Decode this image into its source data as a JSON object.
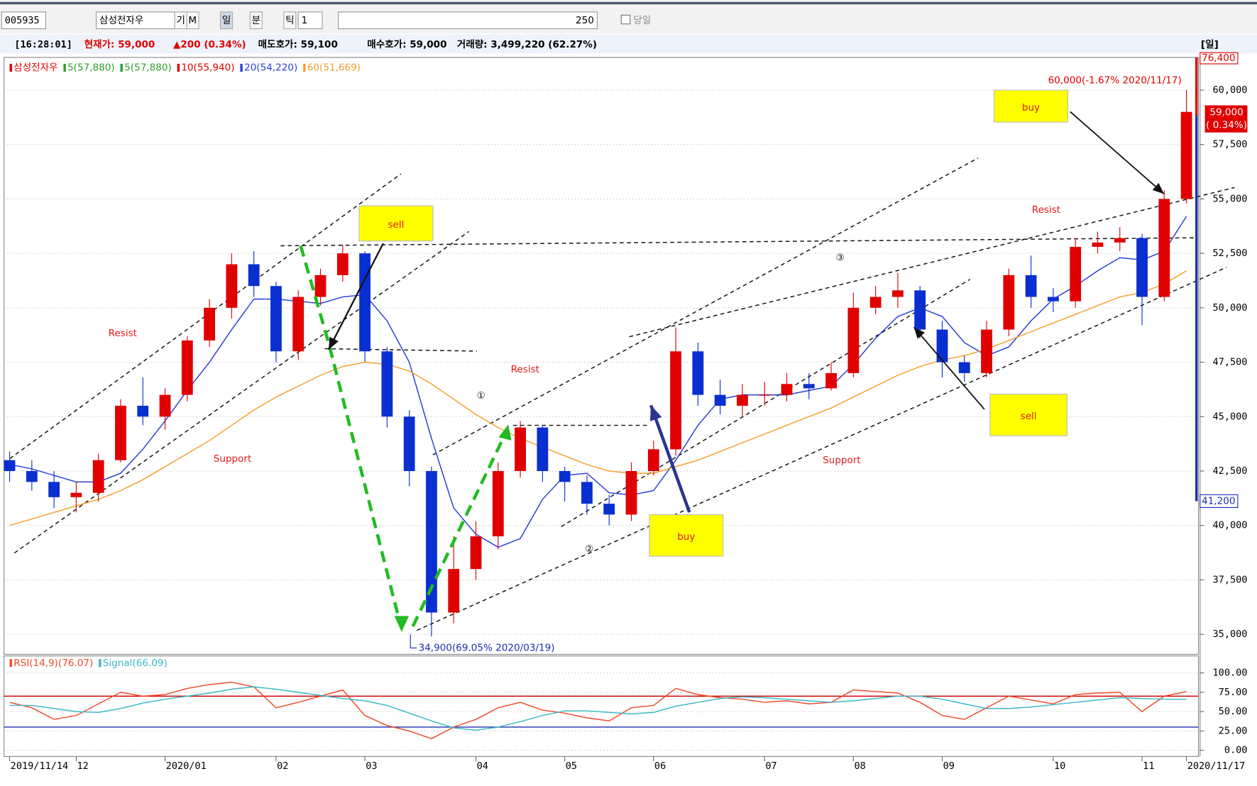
{
  "toolbar": {
    "code": "005935",
    "name": "삼성전자우",
    "buttons": [
      "기",
      "M",
      "일",
      "분",
      "틱"
    ],
    "period": "1",
    "count": "250",
    "today": "당일"
  },
  "info_bar": {
    "time": "[16:28:01]",
    "price": "현재가: 59,000",
    "change": "▲200 (0.34%)",
    "ask": "매도호가: 59,100",
    "bid": "매수호가: 59,000",
    "volume": "거래량: 3,499,220 (62.27%)",
    "corner": "[일]"
  },
  "chart_data": [
    {
      "type": "candlestick",
      "legend": [
        {
          "name": "삼성전자우",
          "color": "#e00000"
        },
        {
          "name": "5(57,880)",
          "color": "#2ca02c"
        },
        {
          "name": "5(57,880)",
          "color": "#2ca02c"
        },
        {
          "name": "10(55,940)",
          "color": "#e00000"
        }
      ],
      "categories": [
        "2019/11/14",
        null,
        null,
        "12",
        null,
        null,
        null,
        "2020/01",
        null,
        null,
        null,
        null,
        "02",
        null,
        null,
        null,
        "03",
        null,
        null,
        null,
        null,
        "04",
        null,
        null,
        null,
        "05",
        null,
        null,
        null,
        "06",
        null,
        null,
        null,
        null,
        "07",
        null,
        null,
        null,
        "08",
        null,
        null,
        null,
        "09",
        null,
        null,
        null,
        null,
        "10",
        null,
        null,
        null,
        "11",
        null,
        "2020/11/17"
      ],
      "open": [
        43000,
        42500,
        42000,
        41300,
        41500,
        43000,
        45500,
        45000,
        46000,
        48500,
        50000,
        52000,
        51000,
        48000,
        50500,
        51500,
        52500,
        48000,
        45000,
        42500,
        36000,
        38000,
        39500,
        42500,
        44500,
        42500,
        42000,
        41000,
        40500,
        42500,
        43500,
        48000,
        46000,
        45500,
        46000,
        46000,
        46500,
        46300,
        47000,
        50000,
        50500,
        50800,
        49000,
        47500,
        47000,
        49000,
        51500,
        50500,
        50300,
        52800,
        53000,
        53200,
        50500,
        55000
      ],
      "high": [
        43400,
        43000,
        42500,
        42000,
        43300,
        45800,
        46800,
        46300,
        48700,
        50400,
        52500,
        52600,
        51200,
        50800,
        51800,
        52900,
        52600,
        48200,
        45300,
        42700,
        39500,
        40200,
        42900,
        44800,
        44600,
        42700,
        42300,
        41400,
        42900,
        43900,
        49100,
        48400,
        46700,
        46500,
        46600,
        47000,
        47000,
        47500,
        50700,
        51000,
        51600,
        51000,
        49400,
        47800,
        49400,
        51800,
        52400,
        50900,
        53200,
        53500,
        53700,
        53400,
        55400,
        60000
      ],
      "low": [
        42000,
        41600,
        40800,
        40600,
        41100,
        42900,
        44600,
        44400,
        45700,
        48200,
        49500,
        50500,
        47500,
        47600,
        50100,
        51200,
        47500,
        44500,
        41800,
        34900,
        35500,
        37500,
        38900,
        42200,
        42000,
        41100,
        40500,
        40000,
        40200,
        42300,
        43200,
        45500,
        45100,
        45000,
        45500,
        45700,
        45800,
        46200,
        46800,
        49700,
        50000,
        48600,
        46800,
        46600,
        46800,
        48700,
        50000,
        49800,
        50000,
        52500,
        52600,
        49200,
        50300,
        54800
      ],
      "close": [
        42500,
        42000,
        41300,
        41500,
        43000,
        45500,
        45000,
        46000,
        48500,
        50000,
        52000,
        51000,
        48000,
        50500,
        51500,
        52500,
        48000,
        45000,
        42500,
        36000,
        38000,
        39500,
        42500,
        44500,
        42500,
        42000,
        41000,
        40500,
        42500,
        43500,
        48000,
        46000,
        45500,
        46000,
        46000,
        46500,
        46300,
        47000,
        50000,
        50500,
        50800,
        49000,
        47500,
        47000,
        49000,
        51500,
        50500,
        50300,
        52800,
        53000,
        53200,
        50500,
        55000,
        59000
      ],
      "up_color": "#e00000",
      "down_color": "#0a2fd0",
      "series": [
        {
          "name": "20(54,220)",
          "color": "#2a3fd6",
          "values": [
            42800,
            42600,
            42300,
            42000,
            42000,
            42400,
            43500,
            44800,
            46200,
            47500,
            49000,
            50400,
            50400,
            50300,
            50200,
            50500,
            50600,
            49400,
            47500,
            44000,
            40800,
            39600,
            39000,
            39400,
            41200,
            42300,
            42400,
            41500,
            41400,
            41600,
            43000,
            44600,
            45800,
            46000,
            46000,
            46000,
            46200,
            46400,
            47400,
            48600,
            49600,
            50000,
            49600,
            48400,
            47800,
            48200,
            49400,
            50400,
            51000,
            51700,
            52300,
            52200,
            52600,
            54200
          ]
        },
        {
          "name": "60(51,669)",
          "color": "#f5a030",
          "values": [
            40000,
            40300,
            40600,
            40900,
            41200,
            41600,
            42100,
            42700,
            43300,
            43900,
            44600,
            45300,
            45900,
            46400,
            46900,
            47300,
            47500,
            47400,
            47100,
            46500,
            45800,
            45100,
            44500,
            44000,
            43600,
            43200,
            42800,
            42500,
            42400,
            42400,
            42700,
            43000,
            43400,
            43800,
            44200,
            44600,
            45000,
            45400,
            45900,
            46400,
            46900,
            47300,
            47600,
            47800,
            48100,
            48500,
            48900,
            49300,
            49700,
            50100,
            50500,
            50700,
            51100,
            51700
          ]
        }
      ],
      "ylim": [
        34080,
        61500
      ],
      "yticks": [
        {
          "value": 35000,
          "label": "35,000"
        },
        {
          "value": 37500,
          "label": "37,500"
        },
        {
          "value": 40000,
          "label": "40,000"
        },
        {
          "value": 42500,
          "label": "42,500"
        },
        {
          "value": 45000,
          "label": "45,000"
        },
        {
          "value": 47500,
          "label": "47,500"
        },
        {
          "value": 50000,
          "label": "50,000"
        },
        {
          "value": 52500,
          "label": "52,500"
        },
        {
          "value": 55000,
          "label": "55,000"
        },
        {
          "value": 57500,
          "label": "57,500"
        },
        {
          "value": 60000,
          "label": "60,000"
        }
      ],
      "grid": true,
      "price_markers": {
        "high_box": "76,400",
        "current": "59,000",
        "current_change": "( 0.34%)",
        "low_box": "41,200"
      },
      "annotations": {
        "high": "60,000(-1.67% 2020/11/17)",
        "low": "34,900(69.05% 2020/03/19)"
      }
    },
    {
      "type": "line",
      "series": [
        {
          "name": "RSI(14,9)(76.07)",
          "color": "#f04a2a",
          "values": [
            62,
            55,
            40,
            45,
            60,
            75,
            70,
            72,
            80,
            85,
            88,
            82,
            55,
            62,
            70,
            78,
            45,
            32,
            25,
            15,
            30,
            40,
            55,
            62,
            52,
            48,
            42,
            38,
            55,
            58,
            80,
            72,
            68,
            66,
            62,
            64,
            60,
            62,
            78,
            76,
            74,
            62,
            45,
            40,
            55,
            70,
            65,
            60,
            72,
            74,
            75,
            50,
            70,
            76
          ]
        },
        {
          "name": "Signal(66.09)",
          "color": "#3bb8c8",
          "values": [
            58,
            58,
            54,
            50,
            49,
            54,
            61,
            66,
            70,
            74,
            79,
            82,
            79,
            75,
            71,
            67,
            64,
            58,
            48,
            38,
            29,
            26,
            30,
            37,
            45,
            51,
            51,
            49,
            47,
            49,
            57,
            62,
            67,
            69,
            68,
            66,
            64,
            62,
            64,
            67,
            70,
            70,
            66,
            60,
            54,
            54,
            56,
            59,
            62,
            65,
            68,
            67,
            66,
            66
          ]
        }
      ],
      "levels": [
        {
          "value": 70,
          "color": "#d00000"
        },
        {
          "value": 30,
          "color": "#1a2fb0"
        }
      ],
      "ylim": [
        -8,
        122
      ],
      "yticks": [
        {
          "value": 100,
          "label": "100.00"
        },
        {
          "value": 75,
          "label": "75.00"
        },
        {
          "value": 50,
          "label": "50.00"
        },
        {
          "value": 25,
          "label": "25.00"
        },
        {
          "value": 0,
          "label": "0.00"
        }
      ],
      "grid": true
    }
  ],
  "overlay": {
    "boxes": [
      "sell",
      "buy",
      "buy",
      "sell"
    ],
    "labels": [
      "Resist",
      "Resist",
      "Resist",
      "Support",
      "Support"
    ],
    "markers": [
      "①",
      "②",
      "③"
    ]
  }
}
